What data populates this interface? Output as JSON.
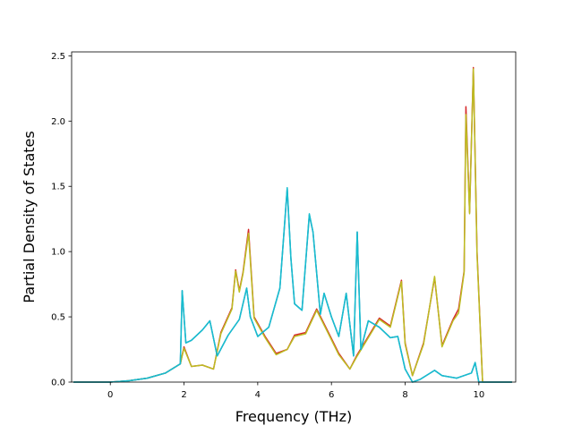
{
  "chart_data": {
    "type": "line",
    "title": "",
    "xlabel": "Frequency (THz)",
    "ylabel": "Partial Density of States",
    "xlim": [
      -1.05,
      11.0
    ],
    "ylim": [
      0.0,
      2.53
    ],
    "xticks": [
      0,
      2,
      4,
      6,
      8,
      10
    ],
    "xtick_labels": [
      "0",
      "2",
      "4",
      "6",
      "8",
      "10"
    ],
    "yticks": [
      0.0,
      0.5,
      1.0,
      1.5,
      2.0,
      2.5
    ],
    "ytick_labels": [
      "0.0",
      "0.5",
      "1.0",
      "1.5",
      "2.0",
      "2.5"
    ],
    "grid": false,
    "legend": false,
    "series": [
      {
        "color": "#d62728",
        "x": [
          -1.0,
          0.0,
          0.5,
          1.0,
          1.5,
          1.9,
          2.0,
          2.2,
          2.5,
          2.8,
          3.0,
          3.3,
          3.4,
          3.5,
          3.6,
          3.75,
          3.9,
          4.2,
          4.5,
          4.8,
          5.0,
          5.3,
          5.6,
          5.9,
          6.2,
          6.5,
          6.7,
          7.0,
          7.3,
          7.6,
          7.9,
          8.0,
          8.2,
          8.5,
          8.8,
          9.0,
          9.3,
          9.45,
          9.6,
          9.65,
          9.75,
          9.85,
          9.95,
          10.1,
          10.9
        ],
        "y": [
          0.0,
          0.0,
          0.01,
          0.03,
          0.07,
          0.14,
          0.27,
          0.12,
          0.13,
          0.1,
          0.38,
          0.57,
          0.86,
          0.7,
          0.84,
          1.17,
          0.5,
          0.35,
          0.22,
          0.25,
          0.36,
          0.38,
          0.56,
          0.39,
          0.22,
          0.1,
          0.21,
          0.35,
          0.49,
          0.43,
          0.78,
          0.3,
          0.05,
          0.3,
          0.8,
          0.28,
          0.48,
          0.56,
          0.85,
          2.11,
          1.3,
          2.41,
          1.0,
          0.0,
          0.0
        ]
      },
      {
        "color": "#bcbd22",
        "x": [
          -1.0,
          0.0,
          0.5,
          1.0,
          1.5,
          1.9,
          2.0,
          2.2,
          2.5,
          2.8,
          3.0,
          3.3,
          3.4,
          3.5,
          3.6,
          3.75,
          3.9,
          4.2,
          4.5,
          4.8,
          5.0,
          5.3,
          5.6,
          5.9,
          6.2,
          6.5,
          6.7,
          7.0,
          7.3,
          7.6,
          7.9,
          8.0,
          8.2,
          8.5,
          8.8,
          9.0,
          9.3,
          9.45,
          9.6,
          9.65,
          9.75,
          9.85,
          9.95,
          10.1,
          10.9
        ],
        "y": [
          0.0,
          0.0,
          0.01,
          0.03,
          0.07,
          0.14,
          0.26,
          0.12,
          0.13,
          0.1,
          0.37,
          0.56,
          0.85,
          0.69,
          0.83,
          1.14,
          0.49,
          0.34,
          0.21,
          0.25,
          0.35,
          0.37,
          0.55,
          0.38,
          0.21,
          0.1,
          0.2,
          0.34,
          0.48,
          0.42,
          0.77,
          0.29,
          0.05,
          0.29,
          0.81,
          0.27,
          0.47,
          0.53,
          0.84,
          2.05,
          1.29,
          2.4,
          0.98,
          0.0,
          0.0
        ]
      },
      {
        "color": "#1f77b4",
        "x": [
          -1.0,
          0.0,
          0.5,
          1.0,
          1.5,
          1.9,
          1.95,
          2.05,
          2.2,
          2.5,
          2.7,
          2.9,
          3.2,
          3.5,
          3.7,
          3.8,
          4.0,
          4.3,
          4.6,
          4.8,
          4.9,
          5.0,
          5.2,
          5.4,
          5.5,
          5.7,
          5.8,
          6.0,
          6.2,
          6.4,
          6.6,
          6.7,
          6.8,
          7.0,
          7.3,
          7.6,
          7.8,
          8.0,
          8.2,
          8.4,
          8.8,
          9.0,
          9.4,
          9.8,
          9.9,
          10.0,
          10.9
        ],
        "y": [
          0.0,
          0.0,
          0.01,
          0.03,
          0.07,
          0.14,
          0.7,
          0.3,
          0.32,
          0.4,
          0.47,
          0.2,
          0.36,
          0.48,
          0.72,
          0.5,
          0.35,
          0.42,
          0.72,
          1.48,
          0.95,
          0.6,
          0.55,
          1.28,
          1.15,
          0.52,
          0.68,
          0.5,
          0.35,
          0.68,
          0.2,
          1.15,
          0.25,
          0.47,
          0.42,
          0.34,
          0.35,
          0.1,
          0.0,
          0.02,
          0.09,
          0.05,
          0.03,
          0.07,
          0.15,
          0.0,
          0.0
        ]
      },
      {
        "color": "#17becf",
        "x": [
          -1.0,
          0.0,
          0.5,
          1.0,
          1.5,
          1.9,
          1.95,
          2.05,
          2.2,
          2.5,
          2.7,
          2.9,
          3.2,
          3.5,
          3.7,
          3.8,
          4.0,
          4.3,
          4.6,
          4.8,
          4.9,
          5.0,
          5.2,
          5.4,
          5.5,
          5.7,
          5.8,
          6.0,
          6.2,
          6.4,
          6.6,
          6.7,
          6.8,
          7.0,
          7.3,
          7.6,
          7.8,
          8.0,
          8.2,
          8.4,
          8.8,
          9.0,
          9.4,
          9.8,
          9.9,
          10.0,
          10.9
        ],
        "y": [
          0.0,
          0.0,
          0.01,
          0.03,
          0.07,
          0.14,
          0.7,
          0.3,
          0.32,
          0.4,
          0.47,
          0.2,
          0.36,
          0.48,
          0.72,
          0.5,
          0.35,
          0.42,
          0.72,
          1.49,
          0.95,
          0.6,
          0.55,
          1.29,
          1.15,
          0.52,
          0.68,
          0.5,
          0.35,
          0.68,
          0.2,
          1.15,
          0.25,
          0.47,
          0.42,
          0.34,
          0.35,
          0.1,
          0.0,
          0.02,
          0.09,
          0.05,
          0.03,
          0.07,
          0.15,
          0.0,
          0.0
        ]
      }
    ]
  }
}
